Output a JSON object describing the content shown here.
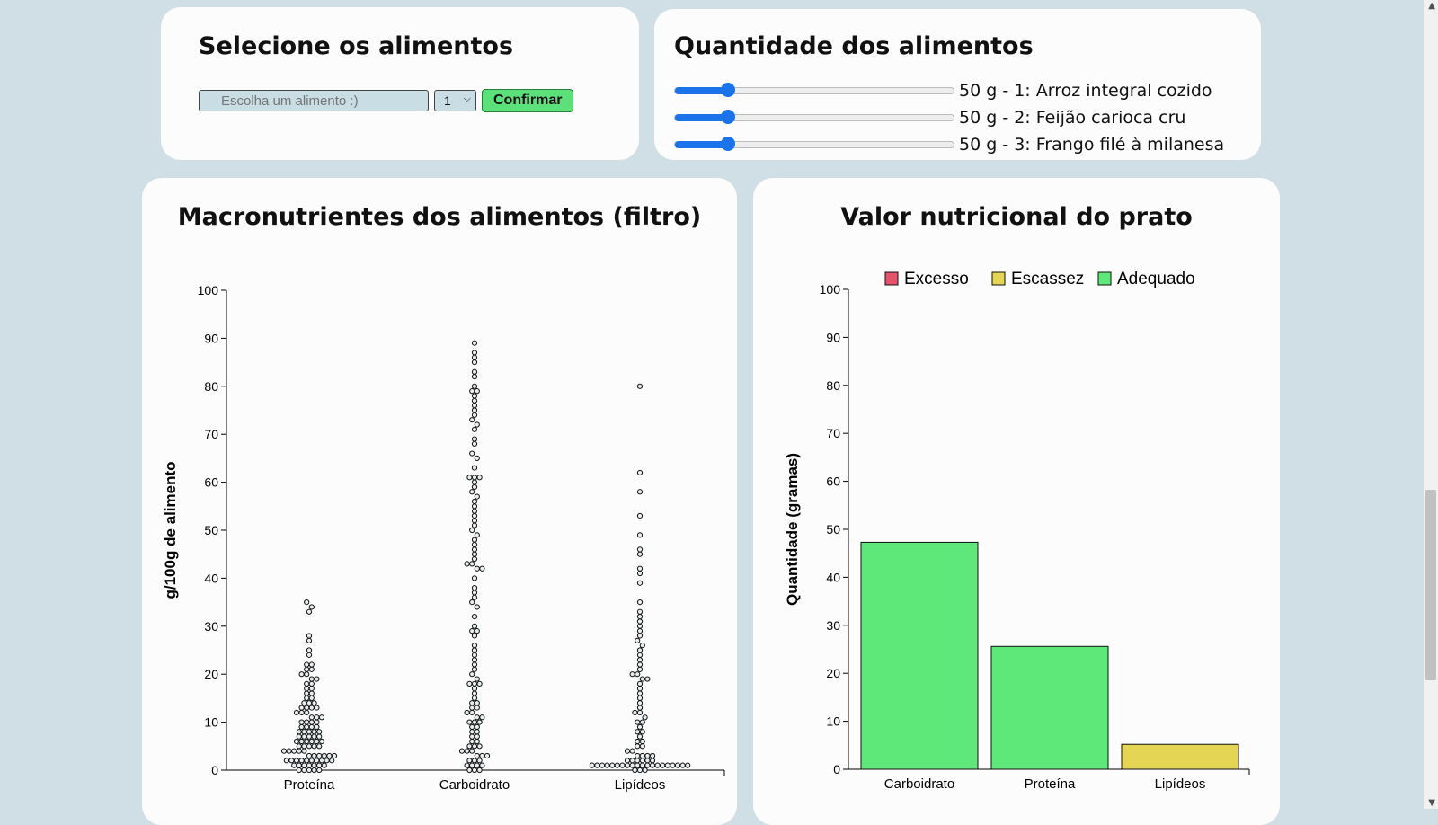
{
  "select_card": {
    "title": "Selecione os alimentos",
    "input_placeholder": "Escolha um alimento :)",
    "quantity_value": "1",
    "confirm_label": "Confirmar"
  },
  "quantity_card": {
    "title": "Quantidade dos alimentos",
    "sliders": [
      {
        "label": "50 g - 1: Arroz integral cozido",
        "value_fraction": 0.19
      },
      {
        "label": "50 g - 2: Feijão carioca cru",
        "value_fraction": 0.19
      },
      {
        "label": "50 g - 3: Frango filé à milanesa",
        "value_fraction": 0.19
      }
    ]
  },
  "colors": {
    "excess": "#e5526a",
    "scarcity": "#e4d555",
    "adequate": "#5ee879",
    "slider": "#1a73e8"
  },
  "chart_data": [
    {
      "type": "scatter",
      "subtype": "beeswarm",
      "title": "Macronutrientes dos alimentos (filtro)",
      "xlabel": "",
      "ylabel": "g/100g de alimento",
      "categories": [
        "Proteína",
        "Carboidrato",
        "Lipídeos"
      ],
      "ylim": [
        0,
        100
      ],
      "yticks": [
        0,
        10,
        20,
        30,
        40,
        50,
        60,
        70,
        80,
        90,
        100
      ],
      "series": [
        {
          "category": "Proteína",
          "values": [
            35,
            34,
            33,
            28,
            27,
            25,
            24,
            22,
            22,
            21,
            21,
            20,
            20,
            19,
            19,
            18,
            18,
            17,
            17,
            16,
            16,
            15,
            15,
            14,
            14,
            14,
            13,
            13,
            13,
            13,
            12,
            12,
            12,
            11,
            11,
            11,
            10,
            10,
            10,
            10,
            9,
            9,
            9,
            9,
            8,
            8,
            8,
            8,
            8,
            7,
            7,
            7,
            7,
            7,
            6,
            6,
            6,
            6,
            6,
            6,
            5,
            5,
            5,
            5,
            5,
            4,
            4,
            4,
            4,
            4,
            3,
            3,
            3,
            3,
            3,
            3,
            2,
            2,
            2,
            2,
            2,
            2,
            2,
            2,
            2,
            2,
            1,
            1,
            1,
            1,
            1,
            1,
            1,
            0,
            0,
            0,
            0,
            0
          ]
        },
        {
          "category": "Carboidrato",
          "values": [
            89,
            87,
            86,
            85,
            83,
            82,
            80,
            79,
            79,
            78,
            77,
            76,
            75,
            74,
            73,
            72,
            71,
            69,
            68,
            66,
            65,
            63,
            61,
            61,
            61,
            60,
            59,
            58,
            57,
            56,
            55,
            54,
            53,
            52,
            51,
            50,
            49,
            48,
            47,
            46,
            45,
            44,
            43,
            43,
            42,
            42,
            40,
            38,
            37,
            36,
            35,
            34,
            32,
            30,
            29,
            29,
            28,
            26,
            25,
            24,
            23,
            22,
            21,
            20,
            19,
            18,
            18,
            18,
            17,
            16,
            15,
            14,
            14,
            13,
            13,
            12,
            12,
            11,
            11,
            10,
            10,
            10,
            9,
            9,
            8,
            8,
            7,
            7,
            6,
            6,
            5,
            5,
            5,
            4,
            4,
            4,
            3,
            3,
            3,
            2,
            2,
            2,
            1,
            1,
            1,
            1,
            0,
            0,
            0
          ]
        },
        {
          "category": "Lipídeos",
          "values": [
            80,
            62,
            58,
            53,
            49,
            46,
            45,
            42,
            41,
            39,
            35,
            33,
            32,
            31,
            30,
            29,
            28,
            27,
            26,
            25,
            24,
            23,
            22,
            21,
            20,
            20,
            19,
            19,
            18,
            17,
            16,
            15,
            14,
            13,
            12,
            12,
            11,
            10,
            10,
            9,
            8,
            8,
            7,
            6,
            6,
            5,
            5,
            4,
            4,
            3,
            3,
            3,
            3,
            2,
            2,
            2,
            2,
            2,
            2,
            1,
            1,
            1,
            1,
            1,
            1,
            1,
            1,
            1,
            1,
            1,
            1,
            1,
            1,
            1,
            1,
            1,
            1,
            1,
            1,
            0,
            0,
            0
          ]
        }
      ]
    },
    {
      "type": "bar",
      "title": "Valor nutricional do prato",
      "xlabel": "",
      "ylabel": "Quantidade (gramas)",
      "categories": [
        "Carboidrato",
        "Proteína",
        "Lipídeos"
      ],
      "values": [
        47.3,
        25.6,
        5.2
      ],
      "statuses": [
        "adequate",
        "adequate",
        "scarcity"
      ],
      "ylim": [
        0,
        100
      ],
      "yticks": [
        0,
        10,
        20,
        30,
        40,
        50,
        60,
        70,
        80,
        90,
        100
      ],
      "legend": {
        "placement": "top",
        "items": [
          {
            "label": "Excesso",
            "key": "excess"
          },
          {
            "label": "Escassez",
            "key": "scarcity"
          },
          {
            "label": "Adequado",
            "key": "adequate"
          }
        ]
      }
    }
  ]
}
